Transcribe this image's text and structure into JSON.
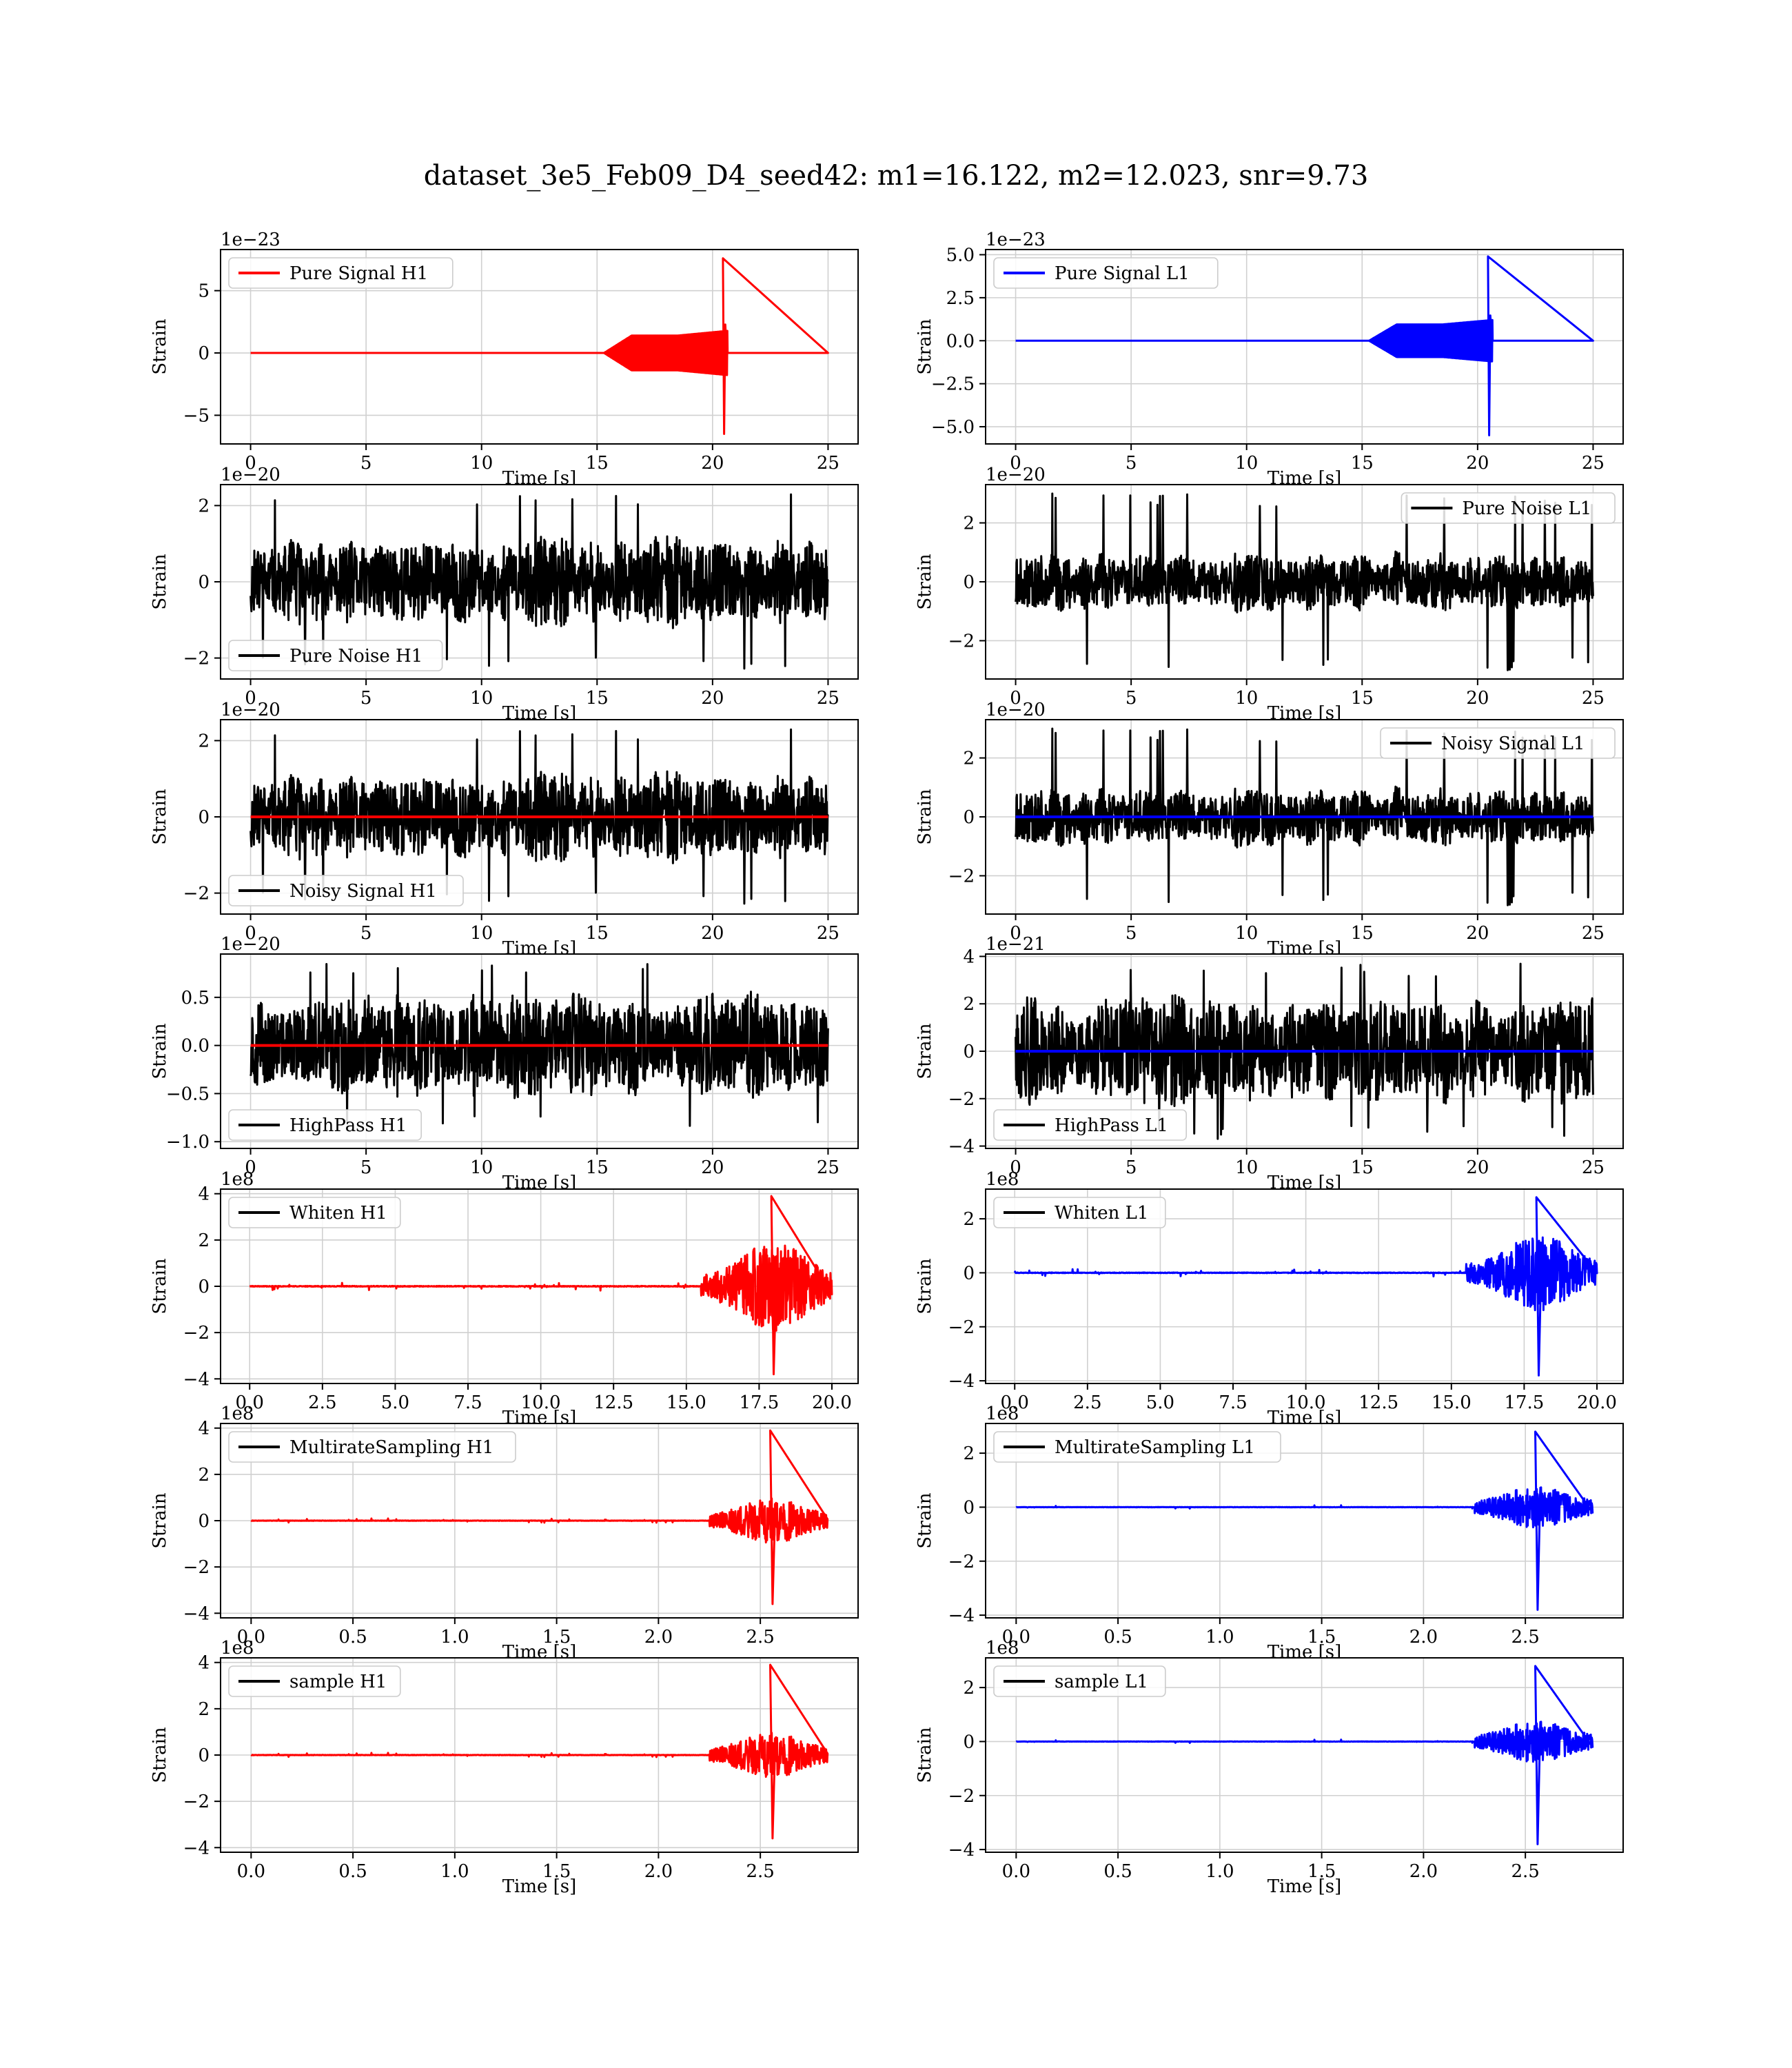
{
  "title": "dataset_3e5_Feb09_D4_seed42: m1=16.122, m2=12.023, snr=9.73",
  "colors": {
    "h1": "#ff0000",
    "l1": "#0000ff",
    "noise": "#000000",
    "grid": "#d0d0d0",
    "axes": "#000000"
  },
  "chart_data": [
    {
      "id": "h1_signal",
      "type": "line",
      "row": 0,
      "col": 0,
      "legend": "Pure Signal H1",
      "legend_loc": "upper-left",
      "legend_color": "#ff0000",
      "xlabel": "Time [s]",
      "ylabel": "Strain",
      "exponent": "1e−23",
      "xlim": [
        -1.3,
        26.3
      ],
      "ylim": [
        -7.3,
        8.3
      ],
      "xticks": [
        0,
        5,
        10,
        15,
        20,
        25
      ],
      "yticks": [
        -5,
        0,
        5
      ],
      "ytick_labels": [
        "−5",
        "0",
        "5"
      ],
      "series": [
        {
          "name": "Pure Signal H1",
          "color": "#ff0000",
          "kind": "chirp",
          "t_end": 25,
          "t_start": 15.3,
          "t_merge": 20.5,
          "amp_plateau": 1.4,
          "peak_max": 7.6,
          "peak_min": -6.5
        }
      ]
    },
    {
      "id": "l1_signal",
      "type": "line",
      "row": 0,
      "col": 1,
      "legend": "Pure Signal L1",
      "legend_loc": "upper-left",
      "legend_color": "#0000ff",
      "xlabel": "Time [s]",
      "ylabel": "Strain",
      "exponent": "1e−23",
      "xlim": [
        -1.3,
        26.3
      ],
      "ylim": [
        -6.0,
        5.3
      ],
      "xticks": [
        0,
        5,
        10,
        15,
        20,
        25
      ],
      "yticks": [
        -5,
        -2.5,
        0,
        2.5,
        5
      ],
      "ytick_labels": [
        "−5.0",
        "−2.5",
        "0.0",
        "2.5",
        "5.0"
      ],
      "series": [
        {
          "name": "Pure Signal L1",
          "color": "#0000ff",
          "kind": "chirp",
          "t_end": 25,
          "t_start": 15.3,
          "t_merge": 20.5,
          "amp_plateau": 0.95,
          "peak_max": 4.9,
          "peak_min": -5.5
        }
      ]
    },
    {
      "id": "h1_noise",
      "type": "line",
      "row": 1,
      "col": 0,
      "legend": "Pure Noise H1",
      "legend_loc": "lower-left",
      "legend_color": "#000000",
      "xlabel": "Time [s]",
      "ylabel": "Strain",
      "exponent": "1e−20",
      "xlim": [
        -1.3,
        26.3
      ],
      "ylim": [
        -2.55,
        2.55
      ],
      "xticks": [
        0,
        5,
        10,
        15,
        20,
        25
      ],
      "yticks": [
        -2,
        0,
        2
      ],
      "ytick_labels": [
        "−2",
        "0",
        "2"
      ],
      "series": [
        {
          "name": "Pure Noise H1",
          "color": "#000000",
          "kind": "noise",
          "t_end": 25,
          "amp": 0.85,
          "peak": 2.3,
          "seed": 11
        }
      ]
    },
    {
      "id": "l1_noise",
      "type": "line",
      "row": 1,
      "col": 1,
      "legend": "Pure Noise L1",
      "legend_loc": "upper-right",
      "legend_color": "#000000",
      "xlabel": "Time [s]",
      "ylabel": "Strain",
      "exponent": "1e−20",
      "xlim": [
        -1.3,
        26.3
      ],
      "ylim": [
        -3.3,
        3.3
      ],
      "xticks": [
        0,
        5,
        10,
        15,
        20,
        25
      ],
      "yticks": [
        -2,
        0,
        2
      ],
      "ytick_labels": [
        "−2",
        "0",
        "2"
      ],
      "series": [
        {
          "name": "Pure Noise L1",
          "color": "#000000",
          "kind": "noise",
          "t_end": 25,
          "amp": 0.75,
          "peak": 3.0,
          "seed": 23
        }
      ]
    },
    {
      "id": "h1_noisy",
      "type": "line",
      "row": 2,
      "col": 0,
      "legend": "Noisy Signal H1",
      "legend_loc": "lower-left",
      "legend_color": "#000000",
      "xlabel": "Time [s]",
      "ylabel": "Strain",
      "exponent": "1e−20",
      "xlim": [
        -1.3,
        26.3
      ],
      "ylim": [
        -2.55,
        2.55
      ],
      "xticks": [
        0,
        5,
        10,
        15,
        20,
        25
      ],
      "yticks": [
        -2,
        0,
        2
      ],
      "ytick_labels": [
        "−2",
        "0",
        "2"
      ],
      "series": [
        {
          "name": "Noisy Signal H1",
          "color": "#000000",
          "kind": "noise",
          "t_end": 25,
          "amp": 0.85,
          "peak": 2.3,
          "seed": 11
        },
        {
          "name": "Pure Signal H1",
          "color": "#ff0000",
          "kind": "flat",
          "t_end": 25
        }
      ]
    },
    {
      "id": "l1_noisy",
      "type": "line",
      "row": 2,
      "col": 1,
      "legend": "Noisy Signal L1",
      "legend_loc": "upper-right",
      "legend_color": "#000000",
      "xlabel": "Time [s]",
      "ylabel": "Strain",
      "exponent": "1e−20",
      "xlim": [
        -1.3,
        26.3
      ],
      "ylim": [
        -3.3,
        3.3
      ],
      "xticks": [
        0,
        5,
        10,
        15,
        20,
        25
      ],
      "yticks": [
        -2,
        0,
        2
      ],
      "ytick_labels": [
        "−2",
        "0",
        "2"
      ],
      "series": [
        {
          "name": "Noisy Signal L1",
          "color": "#000000",
          "kind": "noise",
          "t_end": 25,
          "amp": 0.75,
          "peak": 3.0,
          "seed": 23
        },
        {
          "name": "Pure Signal L1",
          "color": "#0000ff",
          "kind": "flat",
          "t_end": 25
        }
      ]
    },
    {
      "id": "h1_highpass",
      "type": "line",
      "row": 3,
      "col": 0,
      "legend": "HighPass H1",
      "legend_loc": "lower-left",
      "legend_color": "#000000",
      "xlabel": "Time [s]",
      "ylabel": "Strain",
      "exponent": "1e−20",
      "xlim": [
        -1.3,
        26.3
      ],
      "ylim": [
        -1.07,
        0.95
      ],
      "xticks": [
        0,
        5,
        10,
        15,
        20,
        25
      ],
      "yticks": [
        -1,
        -0.5,
        0,
        0.5
      ],
      "ytick_labels": [
        "−1.0",
        "−0.5",
        "0.0",
        "0.5"
      ],
      "series": [
        {
          "name": "HighPass H1",
          "color": "#000000",
          "kind": "noise",
          "t_end": 25,
          "amp": 0.4,
          "peak": 0.85,
          "seed": 37
        },
        {
          "name": "Pure Signal H1",
          "color": "#ff0000",
          "kind": "flat",
          "t_end": 25
        }
      ]
    },
    {
      "id": "l1_highpass",
      "type": "line",
      "row": 3,
      "col": 1,
      "legend": "HighPass L1",
      "legend_loc": "lower-left",
      "legend_color": "#000000",
      "xlabel": "Time [s]",
      "ylabel": "Strain",
      "exponent": "1e−21",
      "xlim": [
        -1.3,
        26.3
      ],
      "ylim": [
        -4.1,
        4.1
      ],
      "xticks": [
        0,
        5,
        10,
        15,
        20,
        25
      ],
      "yticks": [
        -4,
        -2,
        0,
        2,
        4
      ],
      "ytick_labels": [
        "−4",
        "−2",
        "0",
        "2",
        "4"
      ],
      "series": [
        {
          "name": "HighPass L1",
          "color": "#000000",
          "kind": "noise",
          "t_end": 25,
          "amp": 1.6,
          "peak": 3.7,
          "seed": 41
        },
        {
          "name": "Pure Signal L1",
          "color": "#0000ff",
          "kind": "flat",
          "t_end": 25
        }
      ]
    },
    {
      "id": "h1_whiten",
      "type": "line",
      "row": 4,
      "col": 0,
      "legend": "Whiten H1",
      "legend_loc": "upper-left",
      "legend_color": "#000000",
      "xlabel": "Time [s]",
      "ylabel": "Strain",
      "exponent": "1e8",
      "xlim": [
        -1.0,
        20.9
      ],
      "ylim": [
        -4.2,
        4.2
      ],
      "xticks": [
        0,
        2.5,
        5,
        7.5,
        10,
        12.5,
        15,
        17.5,
        20
      ],
      "xtick_labels": [
        "0.0",
        "2.5",
        "5.0",
        "7.5",
        "10.0",
        "12.5",
        "15.0",
        "17.5",
        "20.0"
      ],
      "yticks": [
        -4,
        -2,
        0,
        2,
        4
      ],
      "ytick_labels": [
        "−4",
        "−2",
        "0",
        "2",
        "4"
      ],
      "series": [
        {
          "name": "Whiten H1",
          "color": "#ff0000",
          "kind": "burst",
          "t_end": 20,
          "t_start": 15.5,
          "t_peak": 18.0,
          "amp": 1.1,
          "peak_max": 3.9,
          "peak_min": -3.8,
          "tail_end": 20
        }
      ]
    },
    {
      "id": "l1_whiten",
      "type": "line",
      "row": 4,
      "col": 1,
      "legend": "Whiten L1",
      "legend_loc": "upper-left",
      "legend_color": "#000000",
      "xlabel": "Time [s]",
      "ylabel": "Strain",
      "exponent": "1e8",
      "xlim": [
        -1.0,
        20.9
      ],
      "ylim": [
        -4.1,
        3.1
      ],
      "xticks": [
        0,
        2.5,
        5,
        7.5,
        10,
        12.5,
        15,
        17.5,
        20
      ],
      "xtick_labels": [
        "0.0",
        "2.5",
        "5.0",
        "7.5",
        "10.0",
        "12.5",
        "15.0",
        "17.5",
        "20.0"
      ],
      "yticks": [
        -4,
        -2,
        0,
        2
      ],
      "ytick_labels": [
        "−4",
        "−2",
        "0",
        "2"
      ],
      "series": [
        {
          "name": "Whiten L1",
          "color": "#0000ff",
          "kind": "burst",
          "t_end": 20,
          "t_start": 15.5,
          "t_peak": 18.0,
          "amp": 0.8,
          "peak_max": 2.8,
          "peak_min": -3.8,
          "tail_end": 20
        }
      ]
    },
    {
      "id": "h1_multirate",
      "type": "line",
      "row": 5,
      "col": 0,
      "legend": "MultirateSampling H1",
      "legend_loc": "upper-left",
      "legend_color": "#000000",
      "xlabel": "Time [s]",
      "ylabel": "Strain",
      "exponent": "1e8",
      "xlim": [
        -0.15,
        2.98
      ],
      "ylim": [
        -4.2,
        4.2
      ],
      "xticks": [
        0,
        0.5,
        1,
        1.5,
        2,
        2.5
      ],
      "xtick_labels": [
        "0.0",
        "0.5",
        "1.0",
        "1.5",
        "2.0",
        "2.5"
      ],
      "yticks": [
        -4,
        -2,
        0,
        2,
        4
      ],
      "ytick_labels": [
        "−4",
        "−2",
        "0",
        "2",
        "4"
      ],
      "series": [
        {
          "name": "MultirateSampling H1",
          "color": "#ff0000",
          "kind": "burst",
          "t_end": 2.83,
          "t_start": 2.25,
          "t_peak": 2.56,
          "amp": 0.55,
          "peak_max": 3.9,
          "peak_min": -3.6,
          "tail_end": 2.83
        }
      ]
    },
    {
      "id": "l1_multirate",
      "type": "line",
      "row": 5,
      "col": 1,
      "legend": "MultirateSampling L1",
      "legend_loc": "upper-left",
      "legend_color": "#000000",
      "xlabel": "Time [s]",
      "ylabel": "Strain",
      "exponent": "1e8",
      "xlim": [
        -0.15,
        2.98
      ],
      "ylim": [
        -4.1,
        3.1
      ],
      "xticks": [
        0,
        0.5,
        1,
        1.5,
        2,
        2.5
      ],
      "xtick_labels": [
        "0.0",
        "0.5",
        "1.0",
        "1.5",
        "2.0",
        "2.5"
      ],
      "yticks": [
        -4,
        -2,
        0,
        2
      ],
      "ytick_labels": [
        "−4",
        "−2",
        "0",
        "2"
      ],
      "series": [
        {
          "name": "MultirateSampling L1",
          "color": "#0000ff",
          "kind": "burst",
          "t_end": 2.83,
          "t_start": 2.25,
          "t_peak": 2.56,
          "amp": 0.45,
          "peak_max": 2.8,
          "peak_min": -3.8,
          "tail_end": 2.83
        }
      ]
    },
    {
      "id": "h1_sample",
      "type": "line",
      "row": 6,
      "col": 0,
      "legend": "sample H1",
      "legend_loc": "upper-left",
      "legend_color": "#000000",
      "xlabel": "Time [s]",
      "ylabel": "Strain",
      "exponent": "1e8",
      "xlim": [
        -0.15,
        2.98
      ],
      "ylim": [
        -4.2,
        4.2
      ],
      "xticks": [
        0,
        0.5,
        1,
        1.5,
        2,
        2.5
      ],
      "xtick_labels": [
        "0.0",
        "0.5",
        "1.0",
        "1.5",
        "2.0",
        "2.5"
      ],
      "yticks": [
        -4,
        -2,
        0,
        2,
        4
      ],
      "ytick_labels": [
        "−4",
        "−2",
        "0",
        "2",
        "4"
      ],
      "series": [
        {
          "name": "sample H1",
          "color": "#ff0000",
          "kind": "burst",
          "t_end": 2.83,
          "t_start": 2.25,
          "t_peak": 2.56,
          "amp": 0.55,
          "peak_max": 3.9,
          "peak_min": -3.6,
          "tail_end": 2.83
        }
      ]
    },
    {
      "id": "l1_sample",
      "type": "line",
      "row": 6,
      "col": 1,
      "legend": "sample L1",
      "legend_loc": "upper-left",
      "legend_color": "#000000",
      "xlabel": "Time [s]",
      "ylabel": "Strain",
      "exponent": "1e8",
      "xlim": [
        -0.15,
        2.98
      ],
      "ylim": [
        -4.1,
        3.1
      ],
      "xticks": [
        0,
        0.5,
        1,
        1.5,
        2,
        2.5
      ],
      "xtick_labels": [
        "0.0",
        "0.5",
        "1.0",
        "1.5",
        "2.0",
        "2.5"
      ],
      "yticks": [
        -4,
        -2,
        0,
        2
      ],
      "ytick_labels": [
        "−4",
        "−2",
        "0",
        "2"
      ],
      "series": [
        {
          "name": "sample L1",
          "color": "#0000ff",
          "kind": "burst",
          "t_end": 2.83,
          "t_start": 2.25,
          "t_peak": 2.56,
          "amp": 0.45,
          "peak_max": 2.8,
          "peak_min": -3.8,
          "tail_end": 2.83
        }
      ]
    }
  ]
}
